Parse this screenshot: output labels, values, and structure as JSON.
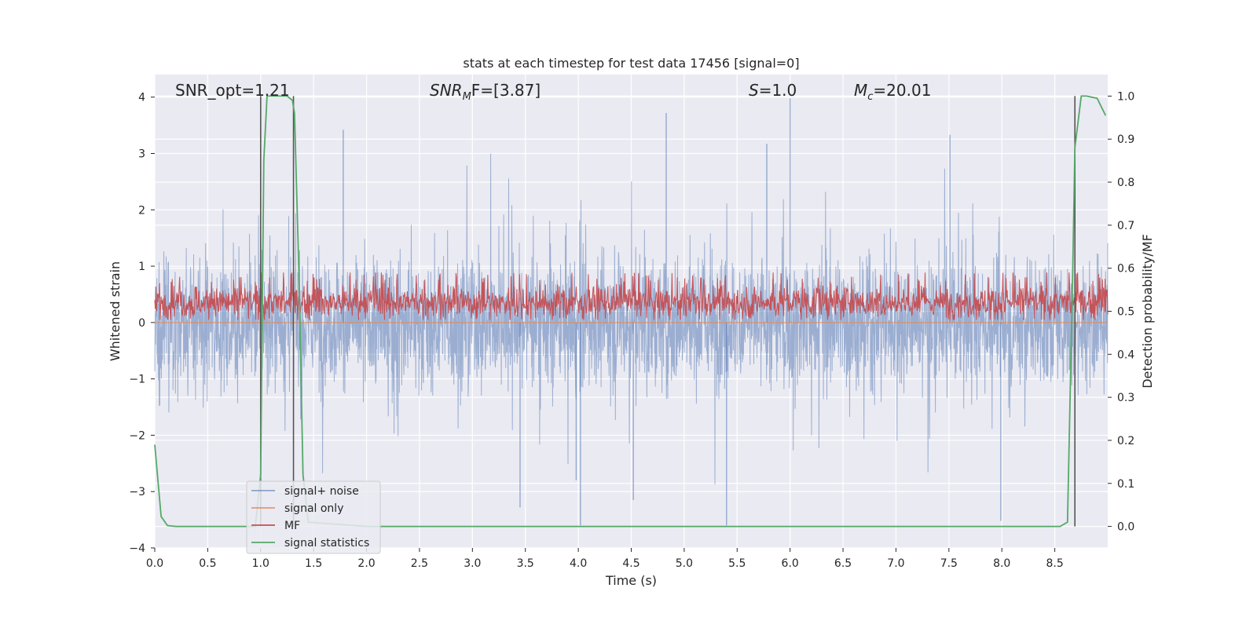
{
  "chart_data": {
    "type": "line",
    "title": "stats at each timestep for test data 17456 [signal=0]",
    "xlabel": "Time (s)",
    "ylabel": "Whitened strain",
    "ylabel_right": "Detection probability/MF",
    "xlim": [
      0,
      9.0
    ],
    "ylim": [
      -4,
      4.4
    ],
    "ylim_right": [
      -0.05,
      1.05
    ],
    "xticks": [
      "0.0",
      "0.5",
      "1.0",
      "1.5",
      "2.0",
      "2.5",
      "3.0",
      "3.5",
      "4.0",
      "4.5",
      "5.0",
      "5.5",
      "6.0",
      "6.5",
      "7.0",
      "7.5",
      "8.0",
      "8.5"
    ],
    "yticks": [
      "−4",
      "−3",
      "−2",
      "−1",
      "0",
      "1",
      "2",
      "3",
      "4"
    ],
    "yticks_right": [
      "0.0",
      "0.1",
      "0.2",
      "0.3",
      "0.4",
      "0.5",
      "0.6",
      "0.7",
      "0.8",
      "0.9",
      "1.0"
    ],
    "grid": true,
    "legend_position": "lower-left",
    "annotations": [
      {
        "text": "SNR_opt=1.21",
        "style": "plain"
      },
      {
        "text": "SNR",
        "sub": "M",
        "suffix": "F=[3.87]",
        "style": "italic-math"
      },
      {
        "text": "S",
        "suffix": "=1.0",
        "style": "italic-math"
      },
      {
        "text": "M",
        "sub": "c",
        "suffix": "=20.01",
        "style": "italic-math"
      }
    ],
    "vertical_markers": [
      1.0,
      1.31,
      8.69
    ],
    "series": [
      {
        "name": "signal+ noise",
        "color": "#4c72b0",
        "description": "whitened noisy strain, roughly ±1.3 band with spikes up to ~3.7 and down to ~-3.6",
        "envelope_std": 0.55,
        "spikes": [
          {
            "x": 4.83,
            "y": 3.72
          },
          {
            "x": 6.0,
            "y": 3.98
          },
          {
            "x": 1.78,
            "y": 3.42
          },
          {
            "x": 5.78,
            "y": 3.17
          },
          {
            "x": 7.51,
            "y": 3.33
          },
          {
            "x": 3.45,
            "y": -3.28
          },
          {
            "x": 4.02,
            "y": -3.6
          },
          {
            "x": 5.4,
            "y": -3.6
          },
          {
            "x": 7.99,
            "y": -3.52
          },
          {
            "x": 3.98,
            "y": -2.8
          },
          {
            "x": 4.52,
            "y": -3.15
          }
        ]
      },
      {
        "name": "signal only",
        "color": "#dd8452",
        "x": [
          0,
          9.0
        ],
        "y": [
          0.0,
          0.0
        ]
      },
      {
        "name": "MF",
        "color": "#c44e52",
        "axis": "right",
        "description": "matched filter output, fluctuating between ~0.48 and ~0.59 on the right axis",
        "range": [
          0.48,
          0.59
        ]
      },
      {
        "name": "signal statistics",
        "color": "#55a868",
        "axis": "right",
        "x": [
          0.0,
          0.06,
          0.12,
          0.2,
          0.5,
          0.95,
          1.0,
          1.03,
          1.06,
          1.25,
          1.3,
          1.32,
          1.36,
          1.4,
          1.45,
          2.0,
          4.0,
          6.0,
          8.0,
          8.55,
          8.62,
          8.67,
          8.69,
          8.75,
          8.8,
          8.9,
          8.98
        ],
        "y": [
          0.19,
          0.023,
          0.002,
          0.0,
          0.0,
          0.0,
          0.12,
          0.85,
          1.0,
          1.0,
          0.99,
          0.96,
          0.6,
          0.12,
          0.01,
          0.0,
          0.0,
          0.0,
          0.0,
          0.0,
          0.01,
          0.6,
          0.88,
          1.0,
          1.0,
          0.995,
          0.955
        ]
      }
    ]
  }
}
